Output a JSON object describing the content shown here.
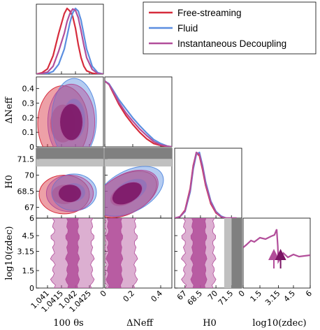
{
  "colors": {
    "free_streaming": "#d62c3c",
    "fluid": "#5b8ee0",
    "instantaneous": "#b24e9a",
    "inst_dark": "#7a1464"
  },
  "legend": {
    "position": "top-right",
    "entries": [
      "Free-streaming",
      "Fluid",
      "Instantaneous Decoupling"
    ]
  },
  "axes": {
    "theta_label": "100 θs",
    "dneff_label": "ΔNeff",
    "h0_label": "H0",
    "logz_label": "log10(zdec)",
    "theta_ticks": [
      "1.041",
      "1.0415",
      "1.042",
      "1.0425"
    ],
    "dneff_ticks": [
      "0",
      "0.1",
      "0.2",
      "0.3",
      "0.4"
    ],
    "dneff_ticks_x": [
      "0",
      "0.2",
      "0.4"
    ],
    "h0_ticks": [
      "67",
      "68.5",
      "70",
      "71.5"
    ],
    "h0_ticks_x": [
      "67",
      "68.5",
      "70",
      "71.5"
    ],
    "logz_ticks": [
      "0",
      "1.5",
      "3.15",
      "4.5",
      "6"
    ],
    "logz_ticks_x": [
      "0",
      "1.5",
      "3.15",
      "4.5",
      "6"
    ]
  },
  "chart_data": {
    "type": "corner",
    "parameters": [
      "100 θs",
      "ΔNeff",
      "H0",
      "log10(zdec)"
    ],
    "ranges": {
      "theta": [
        1.0406,
        1.043
      ],
      "dneff": [
        0,
        0.48
      ],
      "h0": [
        66,
        72.5
      ],
      "logz": [
        0,
        6
      ]
    },
    "marginal_theta": {
      "x": [
        1.0406,
        1.0408,
        1.041,
        1.0412,
        1.0414,
        1.0416,
        1.0417,
        1.0418,
        1.0419,
        1.042,
        1.0421,
        1.0422,
        1.0423,
        1.0424,
        1.0426,
        1.0428,
        1.043
      ],
      "series": [
        {
          "name": "Free-streaming",
          "values": [
            0.0,
            0.02,
            0.08,
            0.28,
            0.62,
            0.92,
            1.0,
            0.96,
            0.88,
            0.7,
            0.45,
            0.25,
            0.12,
            0.05,
            0.015,
            0.0,
            0.0
          ]
        },
        {
          "name": "Fluid",
          "values": [
            0.0,
            0.0,
            0.01,
            0.04,
            0.15,
            0.38,
            0.58,
            0.78,
            0.93,
            1.0,
            0.96,
            0.82,
            0.6,
            0.38,
            0.12,
            0.02,
            0.0
          ]
        },
        {
          "name": "Instantaneous Decoupling",
          "values": [
            0.0,
            0.01,
            0.03,
            0.12,
            0.35,
            0.62,
            0.8,
            0.92,
            0.99,
            0.97,
            0.86,
            0.66,
            0.44,
            0.25,
            0.07,
            0.01,
            0.0
          ]
        }
      ]
    },
    "marginal_dneff": {
      "x": [
        0,
        0.03,
        0.06,
        0.1,
        0.15,
        0.2,
        0.25,
        0.3,
        0.35,
        0.4,
        0.45,
        0.48
      ],
      "series": [
        {
          "name": "Free-streaming",
          "values": [
            1.0,
            0.95,
            0.82,
            0.65,
            0.48,
            0.34,
            0.22,
            0.12,
            0.05,
            0.02,
            0.005,
            0.0
          ]
        },
        {
          "name": "Fluid",
          "values": [
            1.0,
            0.96,
            0.86,
            0.72,
            0.58,
            0.44,
            0.32,
            0.21,
            0.11,
            0.05,
            0.01,
            0.0
          ]
        },
        {
          "name": "Instantaneous Decoupling",
          "values": [
            1.0,
            0.95,
            0.84,
            0.68,
            0.52,
            0.39,
            0.27,
            0.17,
            0.08,
            0.03,
            0.008,
            0.0
          ]
        }
      ]
    },
    "marginal_h0": {
      "x": [
        66,
        66.5,
        67,
        67.5,
        67.8,
        68.1,
        68.4,
        68.7,
        69.0,
        69.5,
        70,
        70.5,
        71,
        72
      ],
      "series": [
        {
          "name": "Free-streaming",
          "values": [
            0.0,
            0.02,
            0.12,
            0.45,
            0.8,
            0.99,
            0.95,
            0.74,
            0.5,
            0.22,
            0.08,
            0.02,
            0.0,
            0.0
          ]
        },
        {
          "name": "Fluid",
          "values": [
            0.0,
            0.02,
            0.1,
            0.4,
            0.75,
            0.97,
            1.0,
            0.8,
            0.55,
            0.26,
            0.1,
            0.03,
            0.0,
            0.0
          ]
        },
        {
          "name": "Instantaneous Decoupling",
          "values": [
            0.0,
            0.02,
            0.11,
            0.43,
            0.78,
            1.0,
            0.97,
            0.77,
            0.52,
            0.24,
            0.09,
            0.02,
            0.0,
            0.0
          ]
        }
      ]
    },
    "marginal_logz": {
      "x": [
        0,
        0.3,
        0.7,
        1.0,
        1.5,
        2.0,
        2.5,
        2.8,
        3.0,
        3.1,
        3.15,
        3.3,
        3.6,
        4.0,
        4.5,
        5.0,
        6.0
      ],
      "series": [
        {
          "name": "Instantaneous Decoupling",
          "values": [
            0.58,
            0.62,
            0.68,
            0.66,
            0.72,
            0.7,
            0.74,
            0.76,
            0.84,
            0.6,
            0.38,
            0.42,
            0.5,
            0.44,
            0.48,
            0.45,
            0.47
          ]
        }
      ]
    },
    "annotations": [
      {
        "type": "arrow",
        "x": 2.75,
        "direction": "up",
        "color": "#b24e9a"
      },
      {
        "type": "arrow",
        "x": 3.35,
        "direction": "up",
        "color": "#7a1464"
      }
    ],
    "shaded_h0_bands": [
      {
        "y0": 71.5,
        "y1": 72.5,
        "color": "#808080"
      },
      {
        "y0": 70.8,
        "y1": 71.5,
        "color": "#c0c0c0"
      }
    ],
    "contours_2d": [
      {
        "pair": [
          "theta",
          "dneff"
        ],
        "series": [
          {
            "name": "Free-streaming",
            "center": [
              1.04155,
              0.16
            ],
            "sd": [
              0.00045,
              0.13
            ]
          },
          {
            "name": "Fluid",
            "center": [
              1.04195,
              0.19
            ],
            "sd": [
              0.0004,
              0.14
            ]
          },
          {
            "name": "Instantaneous Decoupling",
            "center": [
              1.04185,
              0.17
            ],
            "sd": [
              0.00042,
              0.13
            ]
          }
        ]
      },
      {
        "pair": [
          "theta",
          "h0"
        ],
        "series": [
          {
            "name": "Free-streaming",
            "center": [
              1.0416,
              68.2
            ],
            "sd": [
              0.00045,
              0.9
            ]
          },
          {
            "name": "Fluid",
            "center": [
              1.04195,
              68.4
            ],
            "sd": [
              0.0004,
              0.85
            ]
          },
          {
            "name": "Instantaneous Decoupling",
            "center": [
              1.0418,
              68.3
            ],
            "sd": [
              0.00042,
              0.85
            ]
          }
        ]
      },
      {
        "pair": [
          "dneff",
          "h0"
        ],
        "series": [
          {
            "name": "Free-streaming",
            "center": [
              0.15,
              68.2
            ],
            "sd": [
              0.12,
              0.9
            ]
          },
          {
            "name": "Fluid",
            "center": [
              0.18,
              68.5
            ],
            "sd": [
              0.13,
              0.95
            ]
          },
          {
            "name": "Instantaneous Decoupling",
            "center": [
              0.16,
              68.3
            ],
            "sd": [
              0.12,
              0.9
            ]
          }
        ]
      }
    ],
    "bands_logz": [
      {
        "pair": [
          "theta",
          "logz"
        ],
        "inner": [
          1.0417,
          1.0421
        ],
        "outer": [
          1.0412,
          1.0426
        ]
      },
      {
        "pair": [
          "dneff",
          "logz"
        ],
        "inner": [
          0.02,
          0.12
        ],
        "outer": [
          0.0,
          0.22
        ]
      },
      {
        "pair": [
          "h0",
          "logz"
        ],
        "inner": [
          67.7,
          69.0
        ],
        "outer": [
          66.9,
          69.8
        ]
      }
    ]
  }
}
